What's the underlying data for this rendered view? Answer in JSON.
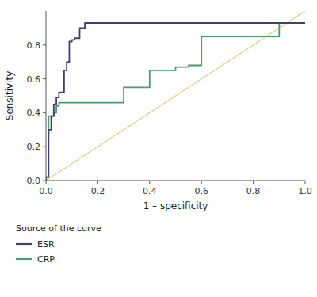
{
  "chart_data": {
    "type": "line",
    "xlabel": "1 – specificity",
    "ylabel": "Sensitivity",
    "xlim": [
      0.0,
      1.0
    ],
    "ylim": [
      0.0,
      1.0
    ],
    "xticks": [
      {
        "value": 0.0,
        "label": "0.0"
      },
      0.2,
      0.4,
      0.6,
      0.8,
      {
        "value": 1.0,
        "label": "1.0"
      }
    ],
    "yticks": [
      {
        "value": 0.0,
        "label": "0.0"
      },
      0.2,
      0.4,
      0.6,
      0.8
    ],
    "grid": false,
    "legend_title": "Source of the curve",
    "diagonal": {
      "x": [
        0,
        1
      ],
      "y": [
        0,
        1
      ],
      "color": "#ddd090"
    },
    "series": [
      {
        "name": "ESR",
        "color": "#404070",
        "x": [
          0.0,
          0.0,
          0.01,
          0.01,
          0.02,
          0.02,
          0.03,
          0.03,
          0.04,
          0.04,
          0.05,
          0.05,
          0.07,
          0.07,
          0.08,
          0.08,
          0.09,
          0.09,
          0.1,
          0.1,
          0.11,
          0.11,
          0.12,
          0.12,
          0.13,
          0.13,
          0.15,
          0.15,
          0.55,
          1.0
        ],
        "values": [
          0.0,
          0.02,
          0.02,
          0.3,
          0.3,
          0.38,
          0.38,
          0.45,
          0.45,
          0.49,
          0.49,
          0.52,
          0.52,
          0.65,
          0.65,
          0.7,
          0.7,
          0.82,
          0.82,
          0.83,
          0.83,
          0.84,
          0.84,
          0.84,
          0.84,
          0.9,
          0.9,
          0.93,
          0.93,
          0.93
        ]
      },
      {
        "name": "CRP",
        "color": "#4a9a6a",
        "x": [
          0.0,
          0.0,
          0.01,
          0.01,
          0.03,
          0.03,
          0.04,
          0.04,
          0.05,
          0.05,
          0.06,
          0.06,
          0.08,
          0.08,
          0.09,
          0.09,
          0.1,
          0.1,
          0.3,
          0.3,
          0.4,
          0.4,
          0.5,
          0.5,
          0.55,
          0.55,
          0.6,
          0.6,
          0.9,
          0.9,
          1.0
        ],
        "values": [
          0.0,
          0.02,
          0.02,
          0.38,
          0.38,
          0.4,
          0.4,
          0.44,
          0.44,
          0.46,
          0.46,
          0.46,
          0.46,
          0.46,
          0.46,
          0.46,
          0.46,
          0.46,
          0.46,
          0.55,
          0.55,
          0.65,
          0.65,
          0.67,
          0.67,
          0.68,
          0.68,
          0.85,
          0.85,
          0.93,
          0.93
        ]
      }
    ]
  }
}
